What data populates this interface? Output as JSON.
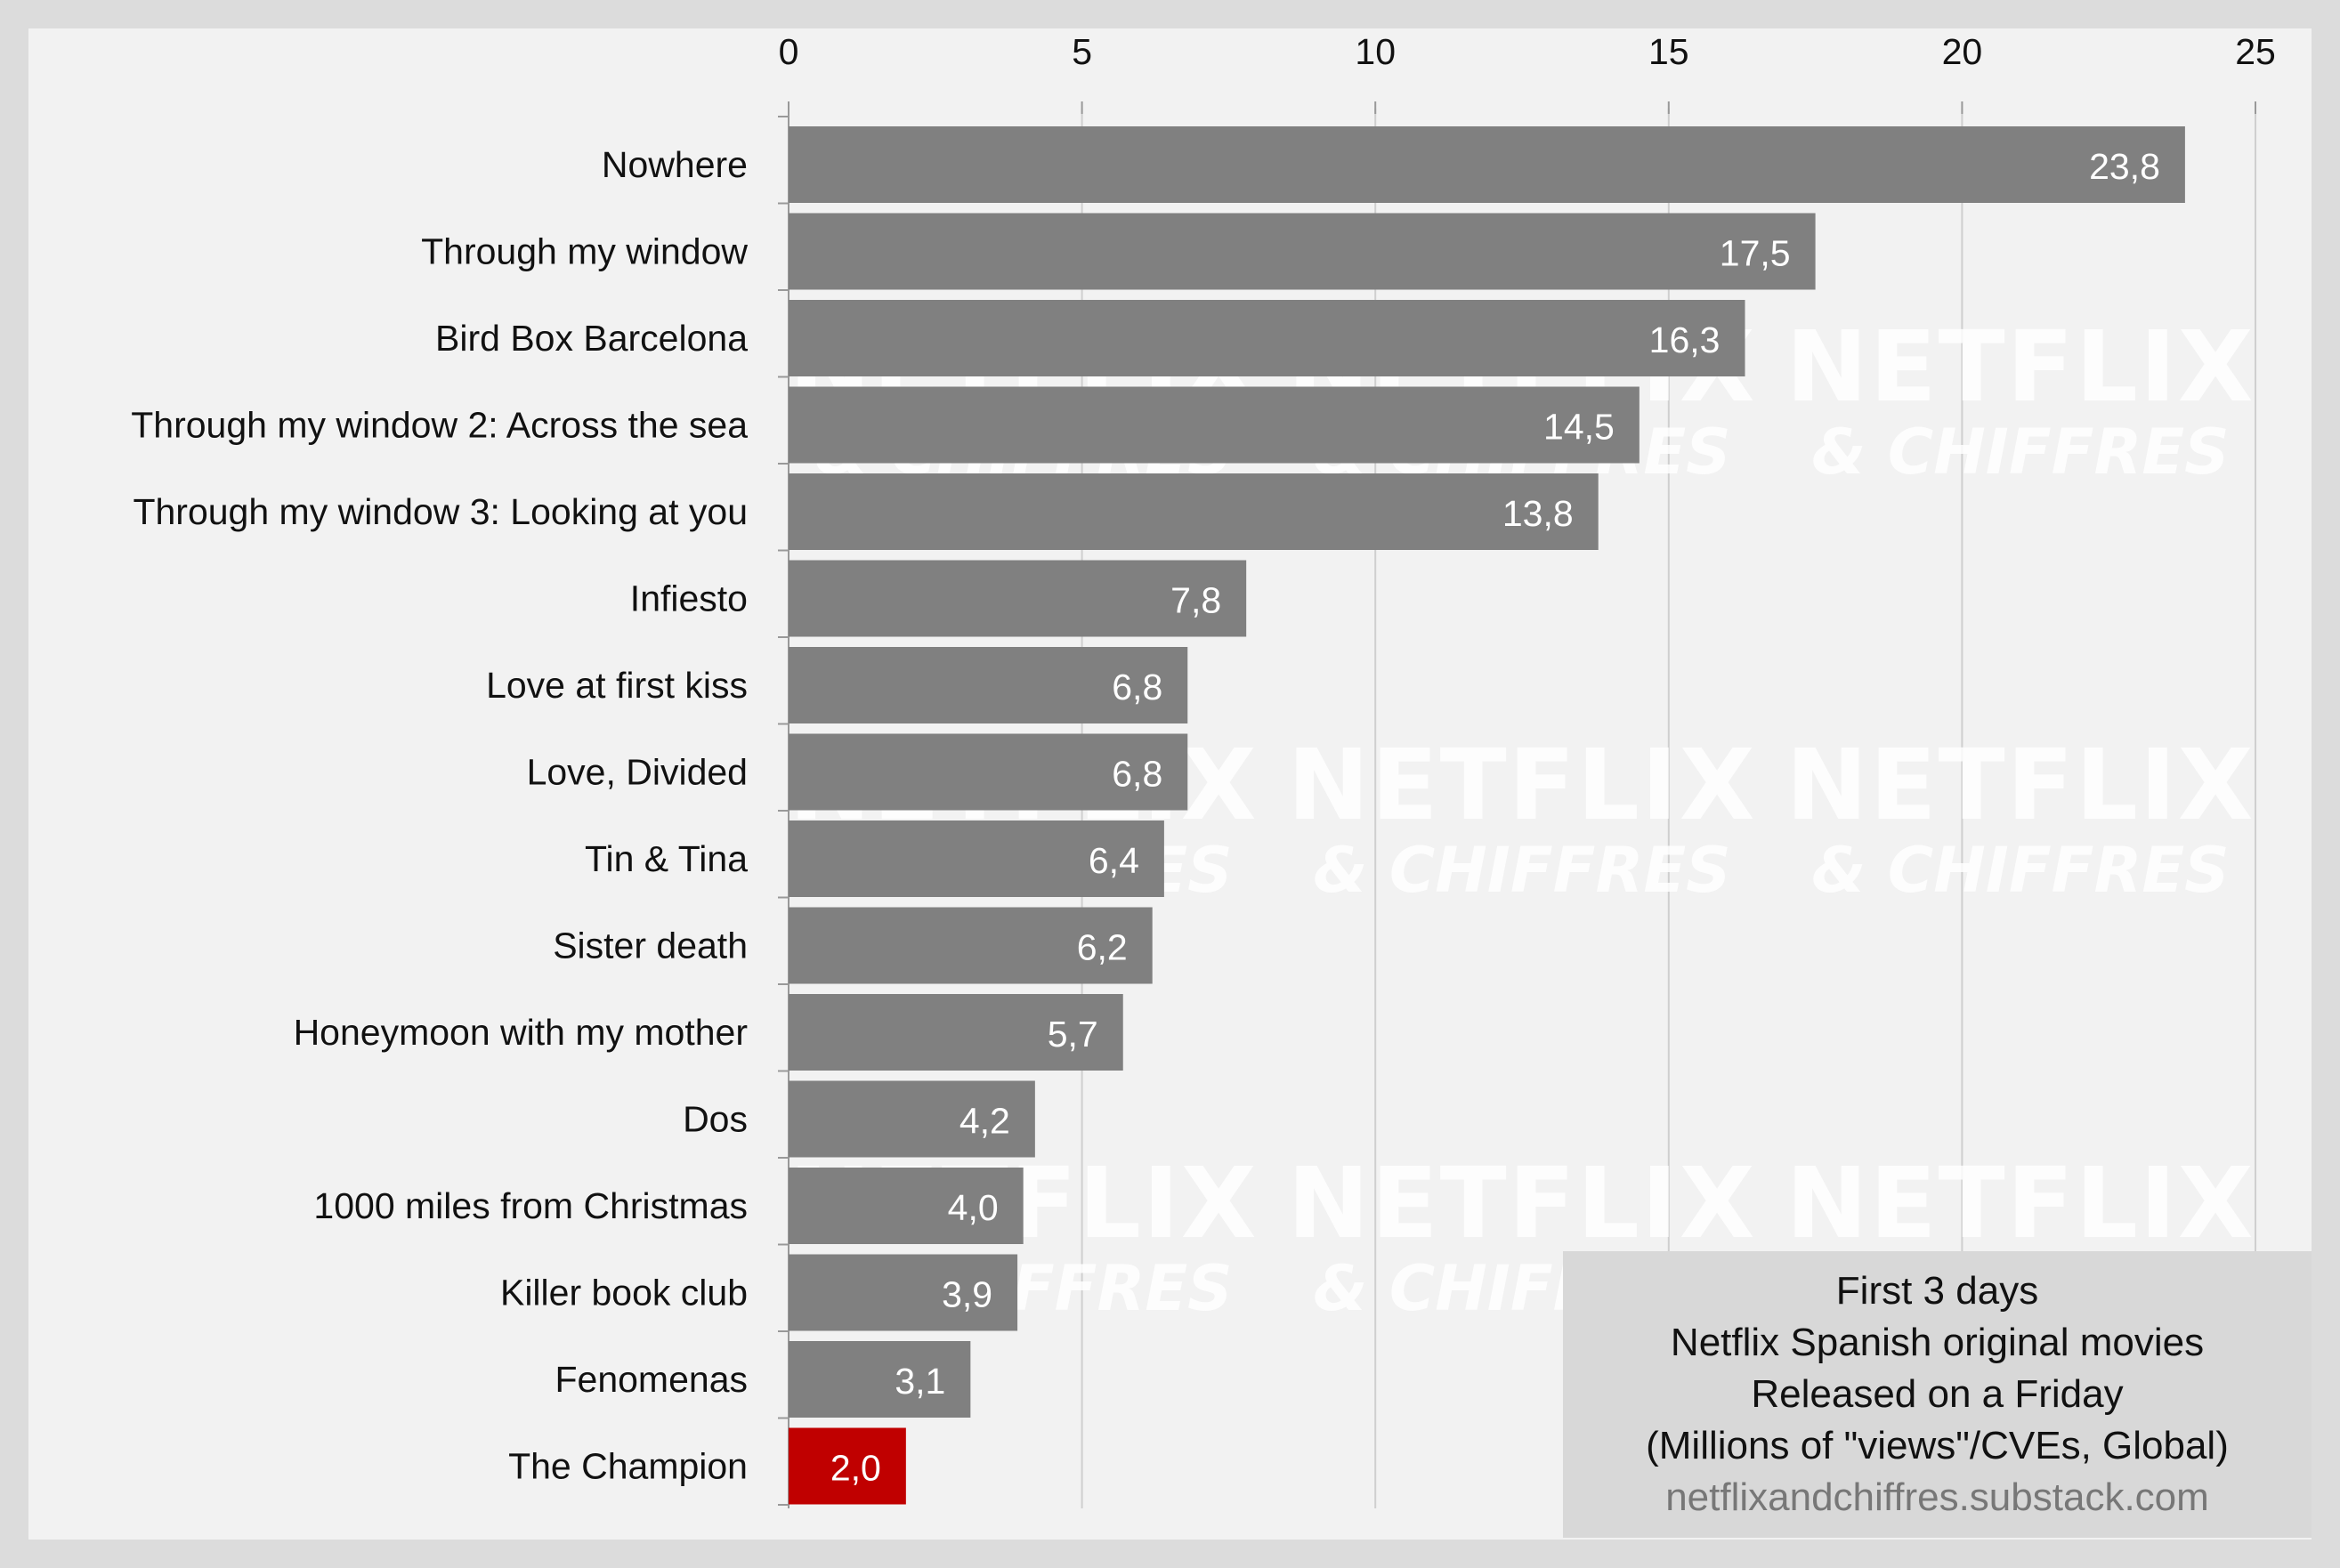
{
  "watermark": {
    "line1": "NETFLIX",
    "line2": "& CHIFFRES"
  },
  "legend": {
    "line1": "First 3 days",
    "line2": "Netflix Spanish original movies",
    "line3": "Released on a Friday",
    "line4": "(Millions of \"views\"/CVEs, Global)",
    "source": "netflixandchiffres.substack.com"
  },
  "colors": {
    "background": "#dcdcdc",
    "plot_background": "#f2f2f2",
    "bar_default": "#808080",
    "bar_highlight": "#c00000",
    "grid": "#cfcfcf"
  },
  "chart_data": {
    "type": "bar",
    "orientation": "horizontal",
    "categories": [
      "Nowhere",
      "Through my window",
      "Bird Box Barcelona",
      "Through my window 2: Across the sea",
      "Through my window 3: Looking at you",
      "Infiesto",
      "Love at first kiss",
      "Love, Divided",
      "Tin & Tina",
      "Sister death",
      "Honeymoon with my mother",
      "Dos",
      "1000 miles from Christmas",
      "Killer book club",
      "Fenomenas",
      "The Champion"
    ],
    "values": [
      23.8,
      17.5,
      16.3,
      14.5,
      13.8,
      7.8,
      6.8,
      6.8,
      6.4,
      6.2,
      5.7,
      4.2,
      4.0,
      3.9,
      3.1,
      2.0
    ],
    "value_labels": [
      "23,8",
      "17,5",
      "16,3",
      "14,5",
      "13,8",
      "7,8",
      "6,8",
      "6,8",
      "6,4",
      "6,2",
      "5,7",
      "4,2",
      "4,0",
      "3,9",
      "3,1",
      "2,0"
    ],
    "highlight": "The Champion",
    "xlim": [
      0,
      25
    ],
    "xticks": [
      0,
      5,
      10,
      15,
      20,
      25
    ],
    "xtick_labels": [
      "0",
      "5",
      "10",
      "15",
      "20",
      "25"
    ],
    "x_axis_position": "top",
    "grid": true,
    "title": "",
    "xlabel": "",
    "ylabel": ""
  }
}
